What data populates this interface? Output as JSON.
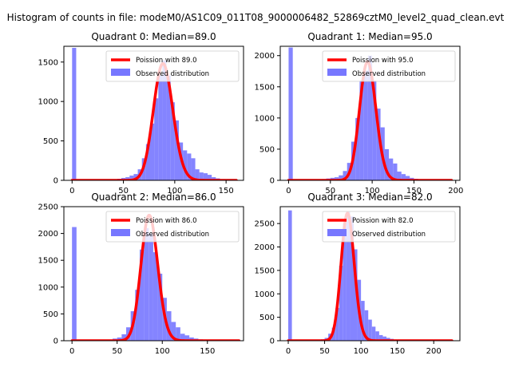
{
  "suptitle": "Histogram of counts in file: modeM0/AS1C09_011T08_9000006482_52869cztM0_level2_quad_clean.evt",
  "colors": {
    "hist": "#7777ff",
    "curve": "#ff0000",
    "axis": "#000000",
    "background": "#ffffff"
  },
  "chart_data": [
    {
      "type": "bar",
      "title": "Quadrant 0: Median=89.0",
      "xlim": [
        -8,
        167
      ],
      "ylim": [
        0,
        1700
      ],
      "xticks": [
        0,
        50,
        100,
        150
      ],
      "yticks": [
        0,
        500,
        1000,
        1500
      ],
      "legend": {
        "curve": "Poission with 89.0",
        "hist": "Observed distribution"
      },
      "bin_width": 4,
      "hist_x": [
        0,
        4,
        8,
        12,
        16,
        20,
        24,
        28,
        32,
        36,
        40,
        44,
        48,
        52,
        56,
        60,
        64,
        68,
        72,
        76,
        80,
        84,
        88,
        92,
        96,
        100,
        104,
        108,
        112,
        116,
        120,
        124,
        128,
        132,
        136,
        140,
        144,
        148,
        152,
        156,
        160
      ],
      "hist_y": [
        1680,
        5,
        5,
        5,
        5,
        5,
        5,
        5,
        10,
        10,
        15,
        20,
        30,
        40,
        60,
        80,
        140,
        280,
        460,
        720,
        1040,
        1330,
        1520,
        1330,
        990,
        760,
        480,
        380,
        340,
        280,
        140,
        100,
        90,
        70,
        40,
        25,
        15,
        10,
        8,
        5,
        5
      ],
      "curve_mean": 89.0,
      "curve_scale": 1480,
      "curve_range": [
        0,
        160
      ]
    },
    {
      "type": "bar",
      "title": "Quadrant 1: Median=95.0",
      "xlim": [
        -10,
        205
      ],
      "ylim": [
        0,
        2150
      ],
      "xticks": [
        0,
        50,
        100,
        150,
        200
      ],
      "yticks": [
        0,
        500,
        1000,
        1500,
        2000
      ],
      "legend": {
        "curve": "Poission with 95.0",
        "hist": "Observed distribution"
      },
      "bin_width": 5,
      "hist_x": [
        0,
        5,
        10,
        15,
        20,
        25,
        30,
        35,
        40,
        45,
        50,
        55,
        60,
        65,
        70,
        75,
        80,
        85,
        90,
        95,
        100,
        105,
        110,
        115,
        120,
        125,
        130,
        135,
        140,
        145,
        150,
        155,
        160,
        165,
        170,
        175,
        180,
        185,
        190,
        195
      ],
      "hist_y": [
        2130,
        5,
        5,
        5,
        5,
        10,
        10,
        15,
        20,
        30,
        40,
        50,
        80,
        150,
        280,
        620,
        1000,
        1600,
        1760,
        2000,
        1600,
        1150,
        850,
        500,
        350,
        270,
        140,
        100,
        70,
        40,
        25,
        15,
        10,
        8,
        5,
        5,
        5,
        5,
        5,
        5
      ],
      "curve_mean": 95.0,
      "curve_scale": 1900,
      "curve_range": [
        0,
        195
      ]
    },
    {
      "type": "bar",
      "title": "Quadrant 2: Median=86.0",
      "xlim": [
        -9,
        190
      ],
      "ylim": [
        0,
        2500
      ],
      "xticks": [
        0,
        50,
        100,
        150
      ],
      "yticks": [
        0,
        500,
        1000,
        1500,
        2000,
        2500
      ],
      "legend": {
        "curve": "Poission with 86.0",
        "hist": "Observed distribution"
      },
      "bin_width": 5,
      "hist_x": [
        0,
        5,
        10,
        15,
        20,
        25,
        30,
        35,
        40,
        45,
        50,
        55,
        60,
        65,
        70,
        75,
        80,
        85,
        90,
        95,
        100,
        105,
        110,
        115,
        120,
        125,
        130,
        135,
        140,
        145,
        150,
        155,
        160,
        165,
        170,
        175,
        180,
        185
      ],
      "hist_y": [
        2120,
        5,
        5,
        5,
        5,
        5,
        10,
        10,
        20,
        40,
        60,
        120,
        250,
        550,
        950,
        1700,
        2100,
        2000,
        1650,
        1250,
        800,
        550,
        350,
        250,
        130,
        100,
        60,
        40,
        25,
        15,
        10,
        8,
        5,
        5,
        5,
        5,
        5,
        5
      ],
      "curve_mean": 86.0,
      "curve_scale": 2340,
      "curve_range": [
        0,
        185
      ]
    },
    {
      "type": "bar",
      "title": "Quadrant 3: Median=82.0",
      "xlim": [
        -11,
        236
      ],
      "ylim": [
        0,
        2860
      ],
      "xticks": [
        0,
        50,
        100,
        150,
        200
      ],
      "yticks": [
        0,
        500,
        1000,
        1500,
        2000,
        2500
      ],
      "legend": {
        "curve": "Poission with 82.0",
        "hist": "Observed distribution"
      },
      "bin_width": 5,
      "hist_x": [
        0,
        5,
        10,
        15,
        20,
        25,
        30,
        35,
        40,
        45,
        50,
        55,
        60,
        65,
        70,
        75,
        80,
        85,
        90,
        95,
        100,
        105,
        110,
        115,
        120,
        125,
        130,
        135,
        140,
        145,
        150,
        155,
        160,
        165,
        170,
        175,
        180,
        185,
        190,
        195,
        200,
        205,
        210,
        215,
        220
      ],
      "hist_y": [
        2780,
        5,
        5,
        5,
        5,
        5,
        10,
        10,
        20,
        30,
        60,
        150,
        280,
        700,
        1600,
        2500,
        2750,
        2650,
        1950,
        1300,
        850,
        650,
        450,
        300,
        200,
        120,
        90,
        60,
        40,
        25,
        15,
        10,
        8,
        5,
        5,
        5,
        5,
        5,
        5,
        5,
        5,
        5,
        5,
        5,
        5
      ],
      "curve_mean": 82.0,
      "curve_scale": 2720,
      "curve_range": [
        0,
        225
      ]
    }
  ]
}
